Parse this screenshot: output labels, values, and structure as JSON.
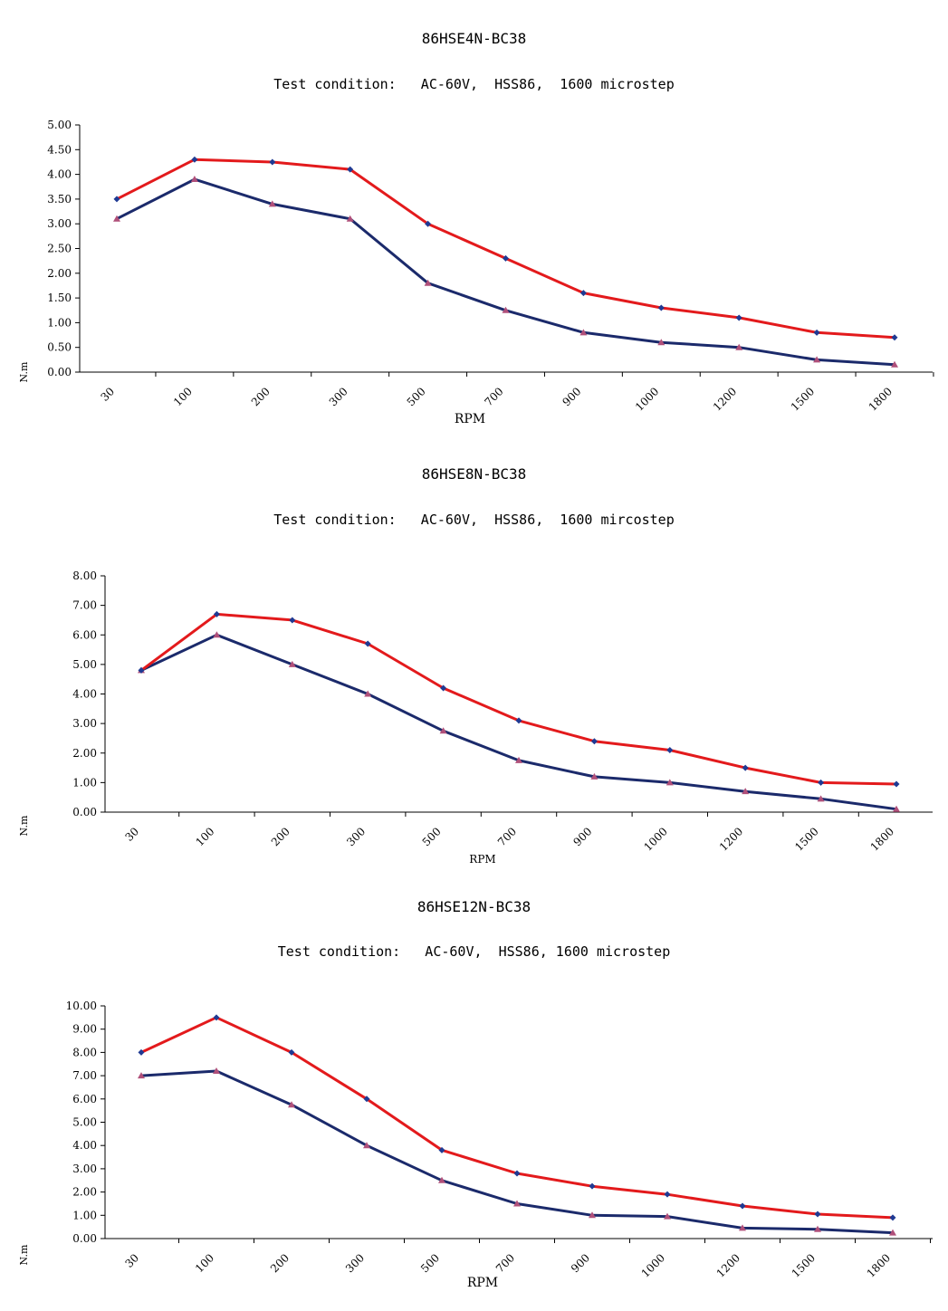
{
  "colors": {
    "upper": "#e31a1c",
    "lower": "#1b2a6b",
    "upper_marker": "#1f3a93",
    "lower_marker": "#b0507a",
    "axis": "#000000"
  },
  "chart_data": [
    {
      "type": "line",
      "title": "86HSE4N-BC38",
      "subtitle": "Test condition:   AC-60V,  HSS86,  1600 microstep",
      "xlabel": "RPM",
      "ylabel": "N.m",
      "categories": [
        "30",
        "100",
        "200",
        "300",
        "500",
        "700",
        "900",
        "1000",
        "1200",
        "1500",
        "1800"
      ],
      "ylim": [
        0,
        5
      ],
      "ystep": 0.5,
      "series": [
        {
          "values": [
            3.5,
            4.3,
            4.25,
            4.1,
            3.0,
            2.3,
            1.6,
            1.3,
            1.1,
            0.8,
            0.7
          ]
        },
        {
          "values": [
            3.1,
            3.9,
            3.4,
            3.1,
            1.8,
            1.25,
            0.8,
            0.6,
            0.5,
            0.25,
            0.15
          ]
        }
      ]
    },
    {
      "type": "line",
      "title": "86HSE8N-BC38",
      "subtitle": "Test condition:   AC-60V,  HSS86,  1600 mircostep",
      "xlabel": "RPM",
      "ylabel": "N.m",
      "categories": [
        "30",
        "100",
        "200",
        "300",
        "500",
        "700",
        "900",
        "1000",
        "1200",
        "1500",
        "1800"
      ],
      "ylim": [
        0,
        8
      ],
      "ystep": 1,
      "series": [
        {
          "values": [
            4.8,
            6.7,
            6.5,
            5.7,
            4.2,
            3.1,
            2.4,
            2.1,
            1.5,
            1.0,
            0.95
          ]
        },
        {
          "values": [
            4.8,
            6.0,
            5.0,
            4.0,
            2.75,
            1.75,
            1.2,
            1.0,
            0.7,
            0.45,
            0.1
          ]
        }
      ]
    },
    {
      "type": "line",
      "title": "86HSE12N-BC38",
      "subtitle": "Test condition:   AC-60V,  HSS86, 1600 microstep",
      "xlabel": "RPM",
      "ylabel": "N.m",
      "categories": [
        "30",
        "100",
        "200",
        "300",
        "500",
        "700",
        "900",
        "1000",
        "1200",
        "1500",
        "1800"
      ],
      "ylim": [
        0,
        10
      ],
      "ystep": 1,
      "series": [
        {
          "values": [
            8.0,
            9.5,
            8.0,
            6.0,
            3.8,
            2.8,
            2.25,
            1.9,
            1.4,
            1.05,
            0.9
          ]
        },
        {
          "values": [
            7.0,
            7.2,
            5.75,
            4.0,
            2.5,
            1.5,
            1.0,
            0.95,
            0.45,
            0.4,
            0.25
          ]
        }
      ]
    }
  ]
}
